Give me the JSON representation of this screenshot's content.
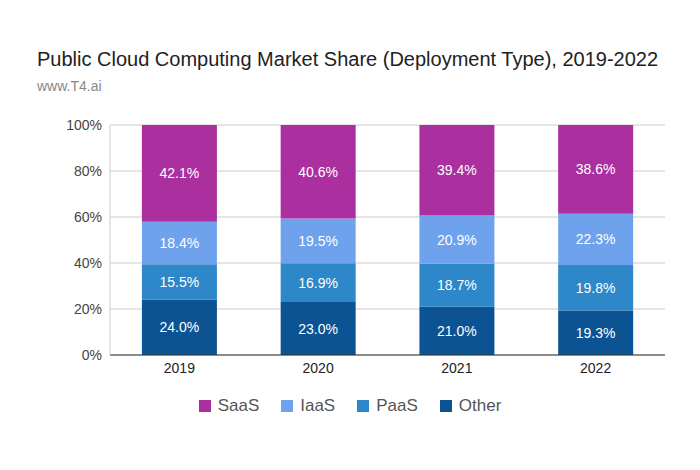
{
  "chart_data": {
    "type": "bar",
    "title": "Public Cloud Computing Market Share (Deployment Type), 2019-2022",
    "subtitle": "www.T4.ai",
    "categories": [
      "2019",
      "2020",
      "2021",
      "2022"
    ],
    "series": [
      {
        "name": "SaaS",
        "color": "#ab2f9f",
        "values": [
          42.1,
          40.6,
          39.4,
          38.6
        ],
        "value_labels": [
          "42.1%",
          "40.6%",
          "39.4%",
          "38.6%"
        ]
      },
      {
        "name": "IaaS",
        "color": "#6fa2ec",
        "values": [
          18.4,
          19.5,
          20.9,
          22.3
        ],
        "value_labels": [
          "18.4%",
          "19.5%",
          "20.9%",
          "22.3%"
        ]
      },
      {
        "name": "PaaS",
        "color": "#2d87c8",
        "values": [
          15.5,
          16.9,
          18.7,
          19.8
        ],
        "value_labels": [
          "15.5%",
          "16.9%",
          "18.7%",
          "19.8%"
        ]
      },
      {
        "name": "Other",
        "color": "#0c5394",
        "values": [
          24.0,
          23.0,
          21.0,
          19.3
        ],
        "value_labels": [
          "24.0%",
          "23.0%",
          "21.0%",
          "19.3%"
        ]
      }
    ],
    "ylim": [
      0,
      100
    ],
    "yticks": [
      {
        "value": 0,
        "label": "0%"
      },
      {
        "value": 20,
        "label": "20%"
      },
      {
        "value": 40,
        "label": "40%"
      },
      {
        "value": 60,
        "label": "60%"
      },
      {
        "value": 80,
        "label": "80%"
      },
      {
        "value": 100,
        "label": "100%"
      }
    ],
    "stacked": true,
    "data_labels": true,
    "grid": true,
    "legend": "bottom"
  }
}
